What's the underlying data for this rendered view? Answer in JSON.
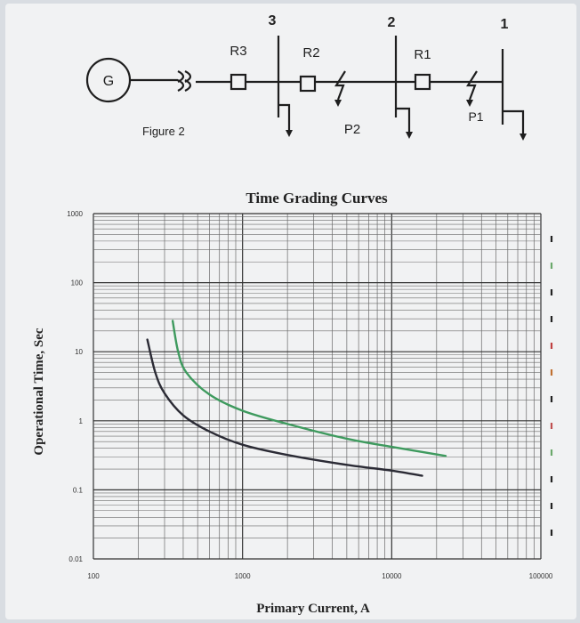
{
  "diagram": {
    "figure_label": "Figure 2",
    "generator_label": "G",
    "bus_numbers": [
      "3",
      "2",
      "1"
    ],
    "relay_labels": [
      "R3",
      "R2",
      "R1"
    ],
    "fault_labels": [
      "P2",
      "P1"
    ]
  },
  "chart_data": {
    "type": "line",
    "title": "Time Grading Curves",
    "xlabel": "Primary Current, A",
    "ylabel": "Operational Time, Sec",
    "xscale": "log",
    "yscale": "log",
    "xlim": [
      100,
      100000
    ],
    "ylim": [
      0.01,
      1000
    ],
    "x_tick_labels": [
      "100",
      "1000",
      "10000",
      "100000"
    ],
    "y_tick_labels": [
      "1000",
      "100",
      "10",
      "1",
      "0.1",
      "0.01"
    ],
    "grid": true,
    "series": [
      {
        "color": "#2b2b35",
        "points": [
          [
            230,
            15
          ],
          [
            260,
            5
          ],
          [
            300,
            2.5
          ],
          [
            400,
            1.2
          ],
          [
            600,
            0.7
          ],
          [
            1000,
            0.45
          ],
          [
            2000,
            0.32
          ],
          [
            5000,
            0.23
          ],
          [
            10000,
            0.19
          ],
          [
            16000,
            0.16
          ]
        ]
      },
      {
        "color": "#3e9a5e",
        "points": [
          [
            340,
            28
          ],
          [
            370,
            10
          ],
          [
            420,
            5
          ],
          [
            600,
            2.4
          ],
          [
            1000,
            1.4
          ],
          [
            2000,
            0.9
          ],
          [
            5000,
            0.55
          ],
          [
            10000,
            0.42
          ],
          [
            23000,
            0.31
          ]
        ]
      }
    ]
  }
}
